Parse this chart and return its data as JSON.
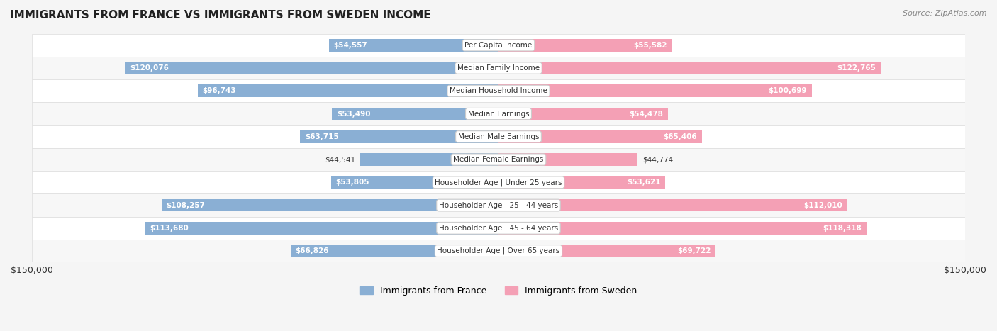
{
  "title": "IMMIGRANTS FROM FRANCE VS IMMIGRANTS FROM SWEDEN INCOME",
  "source": "Source: ZipAtlas.com",
  "categories": [
    "Per Capita Income",
    "Median Family Income",
    "Median Household Income",
    "Median Earnings",
    "Median Male Earnings",
    "Median Female Earnings",
    "Householder Age | Under 25 years",
    "Householder Age | 25 - 44 years",
    "Householder Age | 45 - 64 years",
    "Householder Age | Over 65 years"
  ],
  "france_values": [
    54557,
    120076,
    96743,
    53490,
    63715,
    44541,
    53805,
    108257,
    113680,
    66826
  ],
  "sweden_values": [
    55582,
    122765,
    100699,
    54478,
    65406,
    44774,
    53621,
    112010,
    118318,
    69722
  ],
  "france_labels": [
    "$54,557",
    "$120,076",
    "$96,743",
    "$53,490",
    "$63,715",
    "$44,541",
    "$53,805",
    "$108,257",
    "$113,680",
    "$66,826"
  ],
  "sweden_labels": [
    "$55,582",
    "$122,765",
    "$100,699",
    "$54,478",
    "$65,406",
    "$44,774",
    "$53,621",
    "$112,010",
    "$118,318",
    "$69,722"
  ],
  "max_value": 150000,
  "france_color": "#8aafd4",
  "sweden_color": "#f4a0b5",
  "france_color_dark": "#6b9abf",
  "sweden_color_dark": "#e87fa0",
  "france_label_bg": "#7bafd4",
  "sweden_label_bg": "#f090b0",
  "bar_height": 0.55,
  "background_color": "#f5f5f5",
  "row_bg_color": "#ffffff",
  "row_bg_alt": "#f0f0f0",
  "legend_france": "Immigrants from France",
  "legend_sweden": "Immigrants from Sweden",
  "xlabel_left": "$150,000",
  "xlabel_right": "$150,000"
}
